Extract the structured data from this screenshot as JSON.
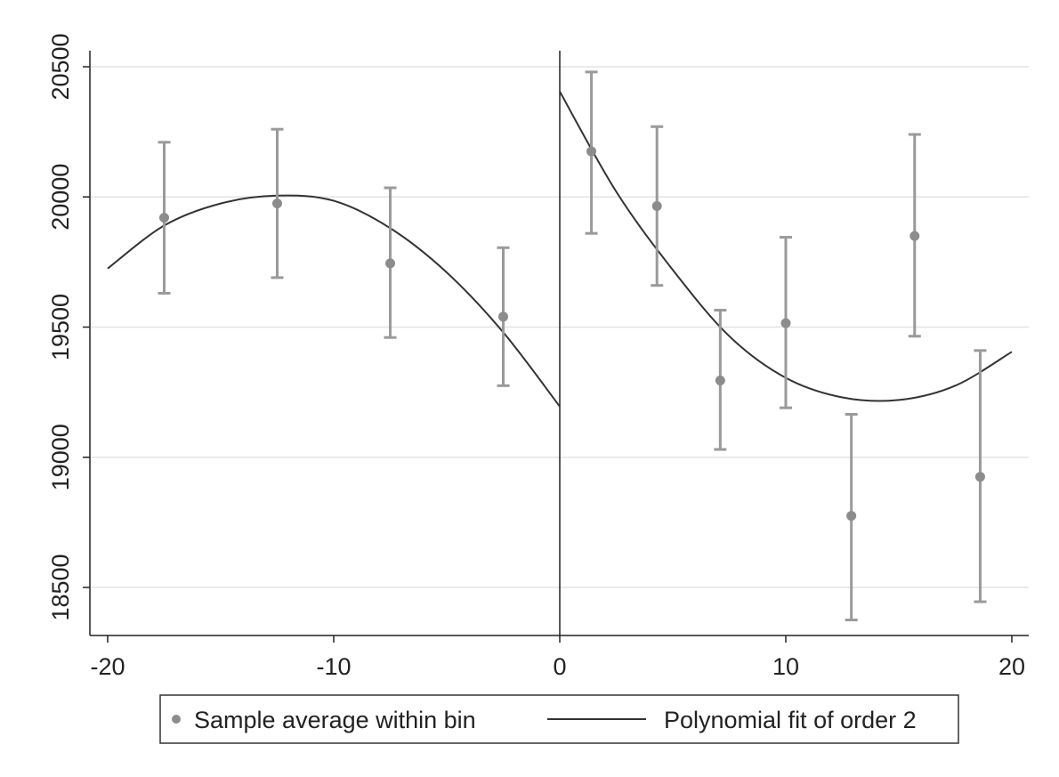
{
  "chart_data": {
    "type": "scatter",
    "title": "",
    "xlabel": "",
    "ylabel": "",
    "xlim": [
      -20,
      20
    ],
    "ylim": [
      18500,
      20500
    ],
    "x_ticks": [
      -20,
      -10,
      0,
      10,
      20
    ],
    "y_ticks": [
      18500,
      19000,
      19500,
      20000,
      20500
    ],
    "x_tick_labels": [
      "-20",
      "-10",
      "0",
      "10",
      "20"
    ],
    "y_tick_labels": [
      "18500",
      "19000",
      "19500",
      "20000",
      "20500"
    ],
    "grid": true,
    "cutoff": 0,
    "legend": {
      "placement": "bottom",
      "entries": [
        "Sample average within bin",
        "Polynomial fit of order 2"
      ]
    },
    "series": [
      {
        "name": "Sample average within bin",
        "kind": "points-with-error-bars",
        "color": "#8c8c8c",
        "points": [
          {
            "x": -17.5,
            "y": 19920,
            "lo": 19630,
            "hi": 20210
          },
          {
            "x": -12.5,
            "y": 19975,
            "lo": 19690,
            "hi": 20260
          },
          {
            "x": -7.5,
            "y": 19745,
            "lo": 19460,
            "hi": 20035
          },
          {
            "x": -2.5,
            "y": 19540,
            "lo": 19275,
            "hi": 19805
          },
          {
            "x": 1.4,
            "y": 20175,
            "lo": 19860,
            "hi": 20480
          },
          {
            "x": 4.3,
            "y": 19965,
            "lo": 19660,
            "hi": 20270
          },
          {
            "x": 7.1,
            "y": 19295,
            "lo": 19030,
            "hi": 19565
          },
          {
            "x": 10.0,
            "y": 19515,
            "lo": 19190,
            "hi": 19845
          },
          {
            "x": 12.9,
            "y": 18775,
            "lo": 18375,
            "hi": 19165
          },
          {
            "x": 15.7,
            "y": 19850,
            "lo": 19465,
            "hi": 20240
          },
          {
            "x": 18.6,
            "y": 18925,
            "lo": 18445,
            "hi": 19410
          }
        ]
      },
      {
        "name": "Polynomial fit of order 2",
        "kind": "fit-line",
        "color": "#333333",
        "segments": [
          {
            "x": [
              -20,
              -17.5,
              -15,
              -12.5,
              -10,
              -7.5,
              -5,
              -2.5,
              0
            ],
            "y": [
              19725,
              19890,
              19975,
              20005,
              19985,
              19880,
              19710,
              19480,
              19195
            ]
          },
          {
            "x": [
              0,
              2.5,
              5,
              7.5,
              10,
              12.5,
              15,
              17.5,
              20
            ],
            "y": [
              20405,
              20020,
              19720,
              19465,
              19305,
              19230,
              19220,
              19275,
              19405
            ]
          }
        ]
      }
    ]
  }
}
